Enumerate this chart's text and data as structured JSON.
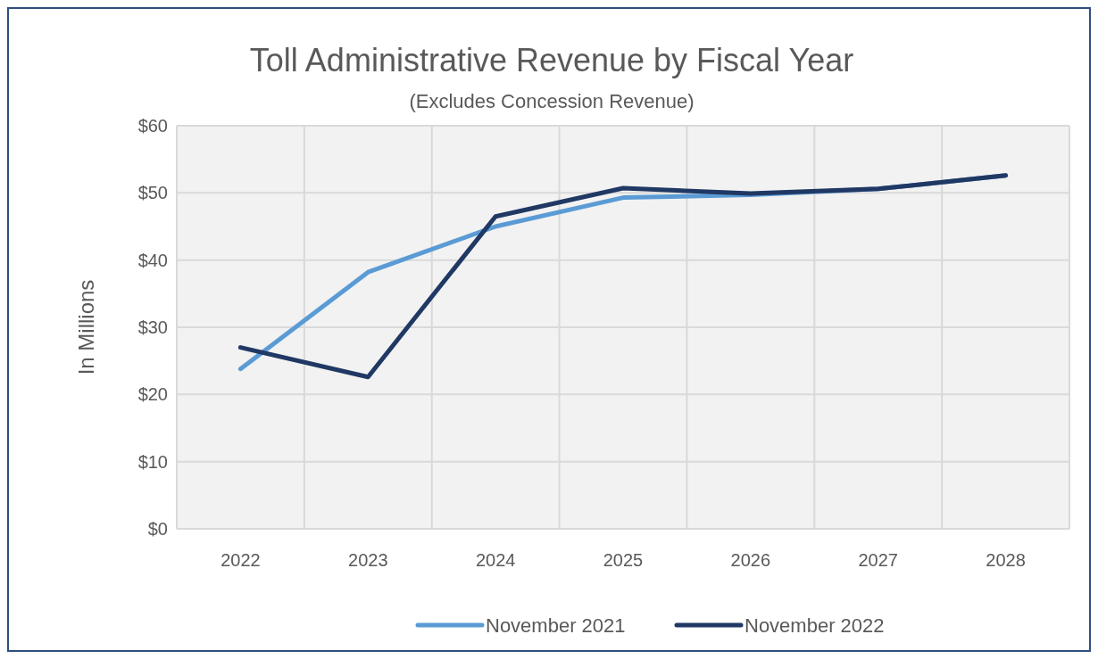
{
  "chart_data": {
    "type": "line",
    "title": "Toll Administrative Revenue by Fiscal Year",
    "subtitle": "(Excludes Concession Revenue)",
    "ylabel": "In Millions",
    "categories": [
      "2022",
      "2023",
      "2024",
      "2025",
      "2026",
      "2027",
      "2028"
    ],
    "series": [
      {
        "name": "November 2021",
        "color": "#5b9bd5",
        "values": [
          23.8,
          38.2,
          45.0,
          49.3,
          49.7,
          50.6,
          52.6
        ]
      },
      {
        "name": "November 2022",
        "color": "#203864",
        "values": [
          27.0,
          22.6,
          46.5,
          50.7,
          49.9,
          50.6,
          52.6
        ]
      }
    ],
    "ylim": [
      0,
      60
    ],
    "yticks": [
      {
        "value": 0,
        "label": "$0"
      },
      {
        "value": 10,
        "label": "$10"
      },
      {
        "value": 20,
        "label": "$20"
      },
      {
        "value": 30,
        "label": "$30"
      },
      {
        "value": 40,
        "label": "$40"
      },
      {
        "value": 50,
        "label": "$50"
      },
      {
        "value": 60,
        "label": "$60"
      }
    ],
    "grid": true,
    "legend": "bottom",
    "marker": "none",
    "line_style": "solid"
  }
}
